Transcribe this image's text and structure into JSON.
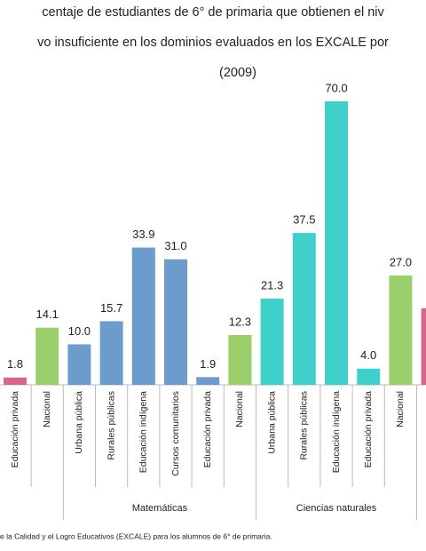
{
  "chart_data": {
    "type": "bar",
    "title": [
      "centaje de estudiantes de 6° de primaria que obtienen el niv",
      "vo insuficiente en los dominios evaluados en los EXCALE por",
      "(2009)"
    ],
    "categories": [
      "Educación privada",
      "Nacional",
      "Urbana pública",
      "Rurales públicas",
      "Educación indígena",
      "Cursos comunitarios",
      "Educación privada",
      "Nacional",
      "Urbana pública",
      "Rurales públicas",
      "Educación indígena",
      "Educación privada",
      "Nacional",
      null
    ],
    "values": [
      1.8,
      14.1,
      10.0,
      15.7,
      33.9,
      31.0,
      1.9,
      12.3,
      21.3,
      37.5,
      70.0,
      4.0,
      27.0,
      18.9
    ],
    "value_labels": [
      "1.8",
      "14.1",
      "10.0",
      "15.7",
      "33.9",
      "31.0",
      "1.9",
      "12.3",
      "21.3",
      "37.5",
      "70.0",
      "4.0",
      "27.0",
      null
    ],
    "colors": [
      "#d6668e",
      "#9bcf6b",
      "#6c9bcc",
      "#6c9bcc",
      "#6c9bcc",
      "#6c9bcc",
      "#6c9bcc",
      "#9bcf6b",
      "#3fd0cb",
      "#3fd0cb",
      "#3fd0cb",
      "#3fd0cb",
      "#9bcf6b",
      "#d6668e"
    ],
    "groups": [
      "Matemáticas",
      "Ciencias naturales"
    ],
    "ylim": [
      0,
      70
    ],
    "source": "e la Calidad y el Logro Educativos (EXCALE) para los alumnos de 6° de primaria."
  }
}
